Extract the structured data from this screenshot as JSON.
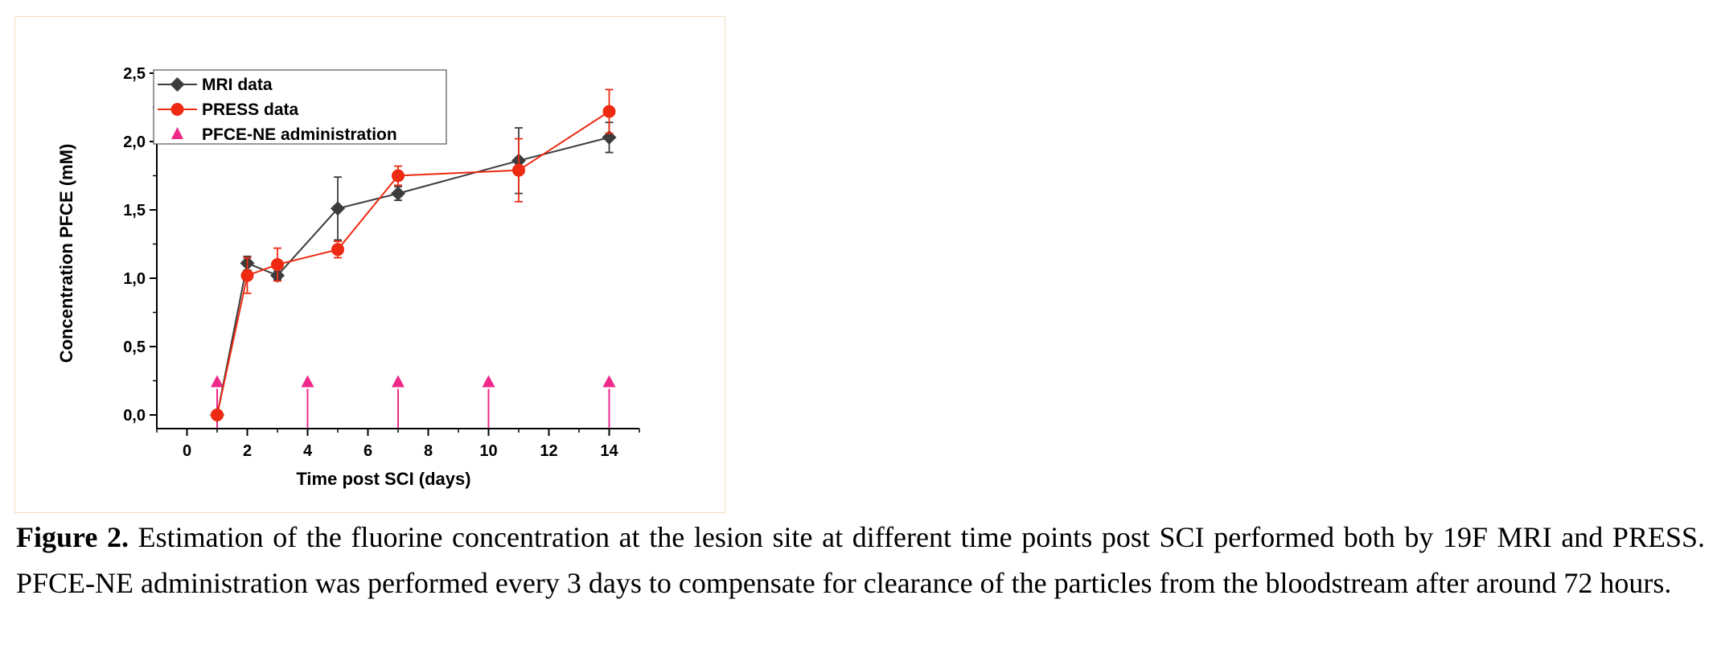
{
  "caption": {
    "label": "Figure 2.",
    "text": " Estimation of the fluorine concentration at the lesion site at different time points post SCI performed both by 19F MRI and PRESS. PFCE-NE administration was performed every 3 days to compensate for clearance of the particles from the bloodstream after around 72 hours."
  },
  "chart_data": {
    "type": "line",
    "xlabel": "Time post SCI (days)",
    "ylabel": "Concentration PFCE (mM)",
    "xlim": [
      -1,
      15
    ],
    "ylim": [
      -0.1,
      2.5
    ],
    "xticks": [
      0,
      2,
      4,
      6,
      8,
      10,
      12,
      14
    ],
    "xtick_labels": [
      "0",
      "2",
      "4",
      "6",
      "8",
      "10",
      "12",
      "14"
    ],
    "yticks": [
      0.0,
      0.5,
      1.0,
      1.5,
      2.0,
      2.5
    ],
    "ytick_labels": [
      "0,0",
      "0,5",
      "1,0",
      "1,5",
      "2,0",
      "2,5"
    ],
    "legend_position": "top-left",
    "series": [
      {
        "name": "MRI data",
        "color": "#3c3c3c",
        "marker": "diamond",
        "x": [
          1,
          2,
          3,
          5,
          7,
          11,
          14
        ],
        "y": [
          0.0,
          1.11,
          1.02,
          1.51,
          1.62,
          1.86,
          2.03
        ],
        "err": [
          0.0,
          0.05,
          0.03,
          0.23,
          0.05,
          0.24,
          0.11
        ]
      },
      {
        "name": "PRESS data",
        "color": "#ee2a12",
        "marker": "circle",
        "x": [
          1,
          2,
          3,
          5,
          7,
          11,
          14
        ],
        "y": [
          0.0,
          1.02,
          1.1,
          1.21,
          1.75,
          1.79,
          2.22
        ],
        "err": [
          0.0,
          0.13,
          0.12,
          0.06,
          0.07,
          0.23,
          0.16
        ]
      }
    ],
    "administration": {
      "name": "PFCE-NE administration",
      "color": "#f0288a",
      "marker": "triangle",
      "x": [
        1,
        4,
        7,
        10,
        14
      ],
      "y": 0.25
    }
  }
}
